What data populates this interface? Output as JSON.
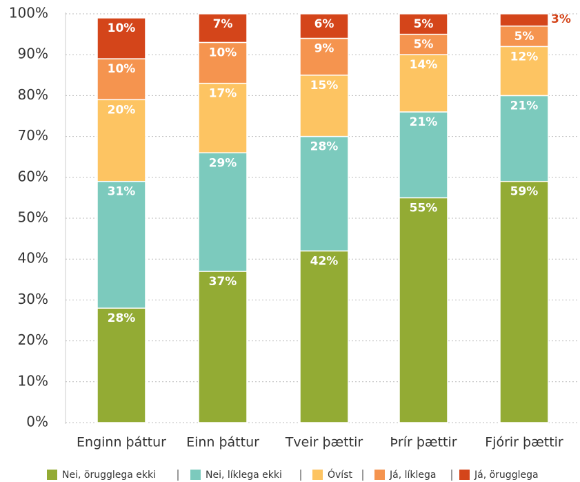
{
  "chart_data": {
    "type": "stacked_bar",
    "categories": [
      "Enginn þáttur",
      "Einn þáttur",
      "Tveir þættir",
      "Þrír þættir",
      "Fjórir þættir"
    ],
    "series": [
      {
        "name": "Nei, örugglega ekki",
        "color": "#93ab34",
        "values": [
          28,
          37,
          42,
          55,
          59
        ],
        "value_labels": [
          "28%",
          "37%",
          "42%",
          "55%",
          "59%"
        ]
      },
      {
        "name": "Nei, líklega ekki",
        "color": "#7ccabd",
        "values": [
          31,
          29,
          28,
          21,
          21
        ],
        "value_labels": [
          "31%",
          "29%",
          "28%",
          "21%",
          "21%"
        ]
      },
      {
        "name": "Óvíst",
        "color": "#fdc462",
        "values": [
          20,
          17,
          15,
          14,
          12
        ],
        "value_labels": [
          "20%",
          "17%",
          "15%",
          "14%",
          "12%"
        ]
      },
      {
        "name": "Já, líklega",
        "color": "#f5944f",
        "values": [
          10,
          10,
          9,
          5,
          5
        ],
        "value_labels": [
          "10%",
          "10%",
          "9%",
          "5%",
          "5%"
        ]
      },
      {
        "name": "Já, örugglega",
        "color": "#d4451a",
        "values": [
          10,
          7,
          6,
          5,
          3
        ],
        "value_labels": [
          "10%",
          "7%",
          "6%",
          "5%",
          "3%"
        ]
      }
    ],
    "ylim": [
      0,
      100
    ],
    "yticks": [
      {
        "value": 0,
        "label": "0%"
      },
      {
        "value": 10,
        "label": "10%"
      },
      {
        "value": 20,
        "label": "20%"
      },
      {
        "value": 30,
        "label": "30%"
      },
      {
        "value": 40,
        "label": "40%"
      },
      {
        "value": 50,
        "label": "50%"
      },
      {
        "value": 60,
        "label": "60%"
      },
      {
        "value": 70,
        "label": "70%"
      },
      {
        "value": 80,
        "label": "80%"
      },
      {
        "value": 90,
        "label": "90%"
      },
      {
        "value": 100,
        "label": "100%"
      }
    ],
    "grid": true,
    "legend": "bottom"
  }
}
